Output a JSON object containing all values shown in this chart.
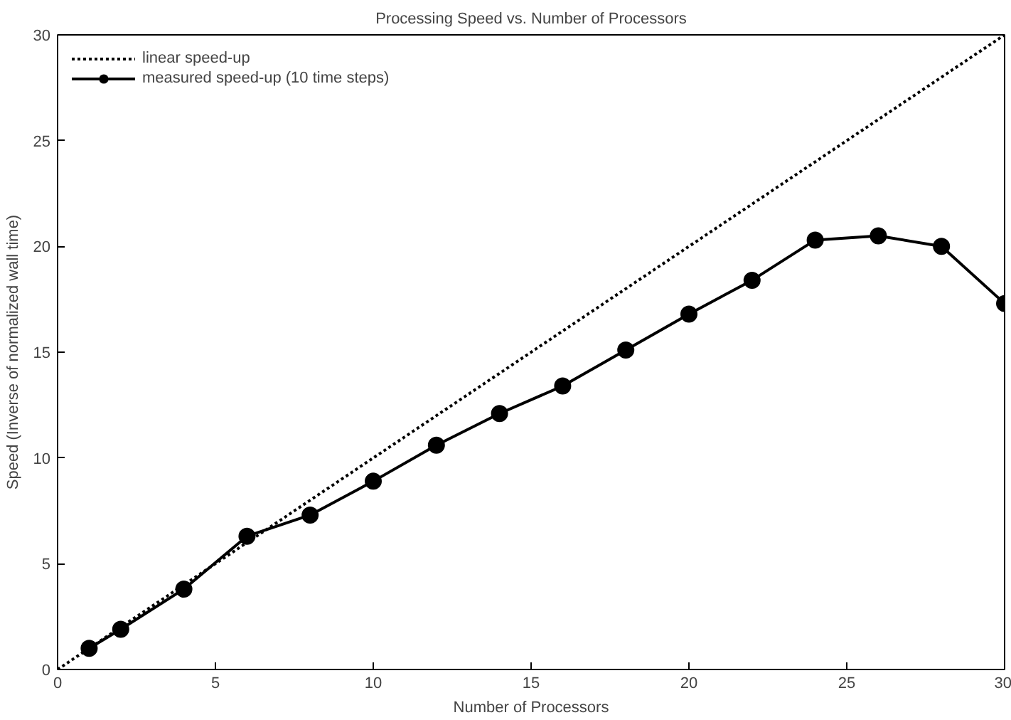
{
  "chart_data": {
    "type": "line",
    "title": "Processing Speed vs. Number of Processors",
    "xlabel": "Number of Processors",
    "ylabel": "Speed (Inverse of normalized wall time)",
    "xlim": [
      0,
      30
    ],
    "ylim": [
      0,
      30
    ],
    "xticks": [
      0,
      5,
      10,
      15,
      20,
      25,
      30
    ],
    "yticks": [
      0,
      5,
      10,
      15,
      20,
      25,
      30
    ],
    "grid": false,
    "legend": "top left",
    "series": [
      {
        "name": "linear speed-up",
        "color": "#000000",
        "x": [
          0,
          30
        ],
        "values": [
          0,
          30
        ],
        "line_style": "dotted",
        "marker": "none"
      },
      {
        "name": "measured speed-up (10 time steps)",
        "color": "#000000",
        "x": [
          1,
          2,
          4,
          6,
          8,
          10,
          12,
          14,
          16,
          18,
          20,
          22,
          24,
          26,
          28,
          30
        ],
        "values": [
          1.0,
          1.9,
          3.8,
          6.3,
          7.3,
          8.9,
          10.6,
          12.1,
          13.4,
          15.1,
          16.8,
          18.4,
          20.3,
          20.5,
          20.0,
          17.3
        ],
        "line_style": "solid",
        "marker": "circle"
      }
    ]
  }
}
